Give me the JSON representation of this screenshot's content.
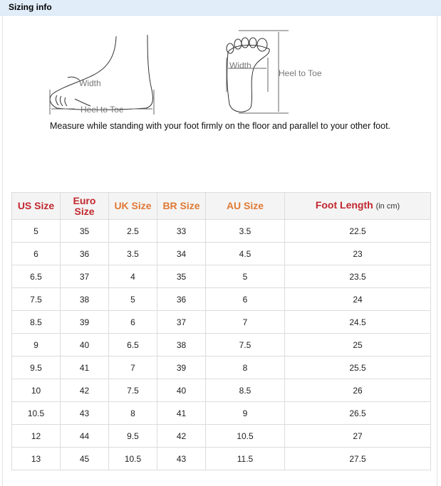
{
  "header": {
    "title": "Sizing info"
  },
  "diagram": {
    "side_width": "Width",
    "side_length": "Heel to Toe",
    "top_width": "Width",
    "top_length": "Heel to Toe"
  },
  "caption": "Measure while standing with your foot firmly on the floor and parallel to your other foot.",
  "colors": {
    "header_red": "#c1272d",
    "header_orange": "#e07a35",
    "topbar": "#e1eefa"
  },
  "table": {
    "headers": [
      "US Size",
      "Euro Size",
      "UK Size",
      "BR Size",
      "AU Size",
      "Foot Length"
    ],
    "foot_length_unit": "(in cm)",
    "rows": [
      [
        "5",
        "35",
        "2.5",
        "33",
        "3.5",
        "22.5"
      ],
      [
        "6",
        "36",
        "3.5",
        "34",
        "4.5",
        "23"
      ],
      [
        "6.5",
        "37",
        "4",
        "35",
        "5",
        "23.5"
      ],
      [
        "7.5",
        "38",
        "5",
        "36",
        "6",
        "24"
      ],
      [
        "8.5",
        "39",
        "6",
        "37",
        "7",
        "24.5"
      ],
      [
        "9",
        "40",
        "6.5",
        "38",
        "7.5",
        "25"
      ],
      [
        "9.5",
        "41",
        "7",
        "39",
        "8",
        "25.5"
      ],
      [
        "10",
        "42",
        "7.5",
        "40",
        "8.5",
        "26"
      ],
      [
        "10.5",
        "43",
        "8",
        "41",
        "9",
        "26.5"
      ],
      [
        "12",
        "44",
        "9.5",
        "42",
        "10.5",
        "27"
      ],
      [
        "13",
        "45",
        "10.5",
        "43",
        "11.5",
        "27.5"
      ]
    ]
  }
}
